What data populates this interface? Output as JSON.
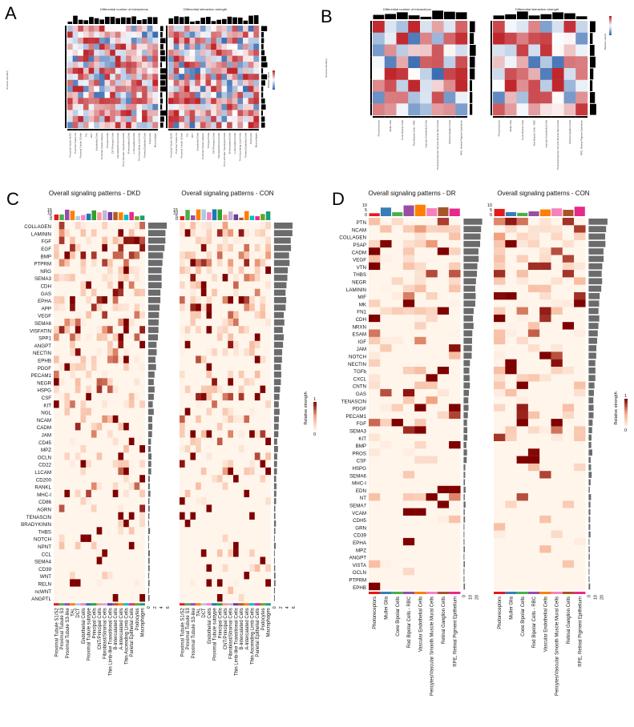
{
  "chart_data": [
    {
      "panel": "A",
      "type": "heatmap",
      "title_left": "Differential number of interactions",
      "title_right": "Differential interaction strength",
      "ylabel": "Sources (Sender)",
      "legend_title": "Relative values",
      "cells": [
        "Proximal Tubule S1/S2",
        "Proximal Tubule S3",
        "Proximal Tubule S3-like",
        "TAL",
        "DCT",
        "Endothelial Cells",
        "Proximal Tubule subtype",
        "Principal Cells",
        "CNT/Principal Cells",
        "Fibroblast/Stromal Cells",
        "Thin Limb-like Transitional Cells",
        "B-Intercalated Cells",
        "A-Intercalated Cells",
        "Thin Ascending Limb Cells",
        "Parietal Epithelial Cells",
        "Podocytes",
        "Macrophages"
      ]
    },
    {
      "panel": "B",
      "type": "heatmap",
      "title_left": "Differential number of interactions",
      "title_right": "Differential interaction strength",
      "ylabel": "Sources (Sender)",
      "legend_title": "Relative values",
      "cells": [
        "Photoreceptors",
        "Muller Glia",
        "Cone Bipolar Cells",
        "Rod Bipolar Cells - RBC",
        "Vascular Endothelial Cells",
        "Pericytes/Vascular Smooth Muscle Mural Cells",
        "Retinal Ganglion Cells",
        "RPE, Retinal Pigment Epithelium"
      ]
    },
    {
      "panel": "C",
      "type": "heatmap",
      "title_left": "Overall signaling patterns - DKD",
      "title_right": "Overall signaling patterns - CON",
      "legend_title": "Relative strength",
      "legend_ticks": [
        "1",
        "0"
      ],
      "pathways_left": [
        "COLLAGEN",
        "LAMININ",
        "FGF",
        "EGF",
        "BMP",
        "PTPRM",
        "NRG",
        "SEMA3",
        "CDH",
        "GAS",
        "EPHA",
        "APP",
        "VEGF",
        "SEMA6",
        "VISFATIN",
        "SPP1",
        "ANGPT",
        "NECTIN",
        "EPHB",
        "PDGF",
        "PECAM1",
        "NEGR",
        "HSPG",
        "CSF",
        "KIT",
        "NGL",
        "NCAM",
        "CADM",
        "JAM",
        "CD45",
        "MPZ",
        "OCLN",
        "CD22",
        "L1CAM",
        "CD200",
        "RANKL",
        "MHC-I",
        "CD86",
        "AGRN",
        "TENASCIN",
        "BRADYKININ",
        "THBS",
        "NOTCH",
        "NPNT",
        "CCL",
        "SEMA4",
        "CD39",
        "WNT",
        "RELN",
        "ncWNT",
        "ANGPTL"
      ],
      "cells": [
        "Proximal Tubule S1/S2",
        "Proximal Tubule S3",
        "Proximal Tubule S3-like",
        "TAL",
        "DCT",
        "Endothelial Cells",
        "Proximal Tubule subtype",
        "Principal Cells",
        "CNT/Principal Cells",
        "Fibroblast/Stromal Cells",
        "Thin Limb-like Transitional Cells",
        "B-Intercalated Cells",
        "A-Intercalated Cells",
        "Thin Ascending Limb Cells",
        "Parietal Epithelial Cells",
        "Podocytes",
        "Macrophages"
      ],
      "top_axis_ticks": [
        "0",
        "5",
        "10",
        "15"
      ],
      "bottom_axis_ticks": [
        "0",
        "2",
        "4",
        "6"
      ]
    },
    {
      "panel": "D",
      "type": "heatmap",
      "title_left": "Overall signaling patterns - DR",
      "title_right": "Overall signaling patterns - CON",
      "legend_title": "Relative strength",
      "legend_ticks": [
        "1",
        "0"
      ],
      "pathways_left": [
        "PTN",
        "NCAM",
        "COLLAGEN",
        "PSAP",
        "CADM",
        "VEGF",
        "VTN",
        "THBS",
        "NEGR",
        "LAMININ",
        "MIF",
        "MK",
        "FN1",
        "CDH",
        "NRXN",
        "ESAM",
        "IGF",
        "JAM",
        "NOTCH",
        "NECTIN",
        "TGFb",
        "CXCL",
        "CNTN",
        "GAS",
        "TENASCIN",
        "PDGF",
        "PECAM1",
        "FGF",
        "SEMA3",
        "KIT",
        "BMP",
        "PROS",
        "CSF",
        "HSPG",
        "SEMA6",
        "MHC-I",
        "EDN",
        "NT",
        "SEMA7",
        "VCAM",
        "CDH5",
        "GRN",
        "CD39",
        "EPHA",
        "MPZ",
        "ANGPT",
        "VISTA",
        "OCLN",
        "PTPRM",
        "EPHB"
      ],
      "cells": [
        "Photoreceptors",
        "Muller Glia",
        "Cone Bipolar Cells",
        "Rod Bipolar Cells - RBC",
        "Vascular Endothelial Cells",
        "Pericytes/Vascular Smooth Muscle Mural Cells",
        "Retinal Ganglion Cells",
        "RPE, Retinal Pigment Epithelium"
      ],
      "top_axis_ticks": [
        "0",
        "5",
        "10"
      ],
      "bottom_axis_ticks": [
        "0",
        "10",
        "20"
      ]
    }
  ],
  "palette": {
    "kidney_cells": [
      "#e41a1c",
      "#4daf4a",
      "#984ea3",
      "#ff7f00",
      "#a6cee3",
      "#f781bf",
      "#1f78b4",
      "#33a02c",
      "#fb9a99",
      "#cab2d6",
      "#6a3d9a",
      "#b15928",
      "#ff7f00",
      "#00bfc4",
      "#e7298a",
      "#66a61e",
      "#1b9e77"
    ],
    "retina_cells": [
      "#e41a1c",
      "#377eb8",
      "#4daf4a",
      "#984ea3",
      "#ff7f00",
      "#f781bf",
      "#a65628",
      "#e7298a"
    ],
    "heat_high": "#7f0000",
    "heat_low": "#fff5eb",
    "neg": "#3b6db3",
    "pos": "#c0272d"
  }
}
